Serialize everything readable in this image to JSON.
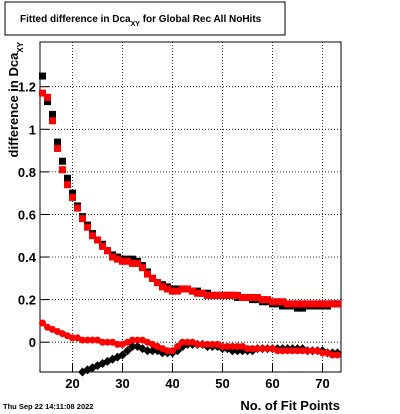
{
  "chart_data": {
    "type": "scatter",
    "title": {
      "main": "Fitted difference in Dca",
      "sub": "XY",
      "rest": " for Global Rec All NoHits"
    },
    "ylabel": {
      "main": "difference in Dca",
      "sub": "XY"
    },
    "xlabel": "No. of Fit Points",
    "timestamp": "Thu Sep 22 14:11:08 2022",
    "grid": true,
    "xlim": [
      13.5,
      73.7
    ],
    "ylim": [
      -0.14,
      1.41
    ],
    "xticks": [
      20,
      30,
      40,
      50,
      60,
      70
    ],
    "yticks": [
      0,
      0.2,
      0.4,
      0.6,
      0.8,
      1,
      1.2
    ],
    "x": [
      14,
      15,
      16,
      17,
      18,
      19,
      20,
      21,
      22,
      23,
      24,
      25,
      26,
      27,
      28,
      29,
      30,
      31,
      32,
      33,
      34,
      35,
      36,
      37,
      38,
      39,
      40,
      41,
      42,
      43,
      44,
      45,
      46,
      47,
      48,
      49,
      50,
      51,
      52,
      53,
      54,
      55,
      56,
      57,
      58,
      59,
      60,
      61,
      62,
      63,
      64,
      65,
      66,
      67,
      68,
      69,
      70,
      71,
      72,
      73
    ],
    "series": [
      {
        "color": "#000000",
        "marker": "square",
        "values": [
          1.25,
          1.13,
          1.07,
          0.94,
          0.85,
          0.77,
          0.7,
          0.64,
          0.59,
          0.55,
          0.51,
          0.48,
          0.46,
          0.43,
          0.41,
          0.4,
          0.39,
          0.39,
          0.39,
          0.38,
          0.36,
          0.33,
          0.3,
          0.28,
          0.27,
          0.26,
          0.25,
          0.25,
          0.25,
          0.25,
          0.24,
          0.24,
          0.23,
          0.23,
          0.22,
          0.22,
          0.22,
          0.22,
          0.22,
          0.21,
          0.21,
          0.21,
          0.2,
          0.2,
          0.19,
          0.19,
          0.18,
          0.18,
          0.17,
          0.17,
          0.17,
          0.16,
          0.16,
          0.17,
          0.17,
          0.17,
          0.17,
          0.17,
          0.18,
          0.18
        ]
      },
      {
        "color": "#ff0000",
        "marker": "square",
        "values": [
          1.17,
          1.15,
          1.04,
          0.91,
          0.81,
          0.74,
          0.68,
          0.63,
          0.58,
          0.54,
          0.5,
          0.48,
          0.45,
          0.43,
          0.4,
          0.39,
          0.38,
          0.38,
          0.37,
          0.37,
          0.35,
          0.32,
          0.3,
          0.28,
          0.26,
          0.25,
          0.24,
          0.24,
          0.25,
          0.25,
          0.24,
          0.23,
          0.23,
          0.22,
          0.22,
          0.22,
          0.22,
          0.22,
          0.22,
          0.22,
          0.21,
          0.21,
          0.21,
          0.21,
          0.2,
          0.2,
          0.19,
          0.19,
          0.19,
          0.18,
          0.18,
          0.18,
          0.18,
          0.18,
          0.18,
          0.18,
          0.18,
          0.18,
          0.18,
          0.18
        ]
      },
      {
        "color": "#000000",
        "marker": "diamond",
        "values": [
          null,
          null,
          null,
          null,
          null,
          null,
          null,
          null,
          -0.14,
          -0.13,
          -0.12,
          -0.11,
          -0.1,
          -0.09,
          -0.08,
          -0.07,
          -0.06,
          -0.04,
          -0.02,
          -0.02,
          -0.03,
          -0.04,
          -0.04,
          -0.04,
          -0.05,
          -0.05,
          -0.05,
          -0.04,
          -0.02,
          -0.01,
          -0.01,
          -0.01,
          -0.01,
          -0.02,
          -0.02,
          -0.02,
          -0.03,
          -0.03,
          -0.04,
          -0.04,
          -0.04,
          -0.04,
          -0.04,
          -0.03,
          -0.03,
          -0.03,
          -0.03,
          -0.03,
          -0.03,
          -0.03,
          -0.03,
          -0.03,
          -0.03,
          -0.04,
          -0.04,
          -0.04,
          -0.04,
          -0.05,
          -0.05,
          -0.05
        ]
      },
      {
        "color": "#ff0000",
        "marker": "circle",
        "values": [
          0.09,
          0.07,
          0.06,
          0.05,
          0.04,
          0.03,
          0.02,
          0.02,
          0.01,
          0.01,
          0.01,
          0.01,
          0.0,
          0.0,
          0.0,
          -0.01,
          -0.01,
          0.0,
          0.01,
          0.01,
          0.01,
          0.0,
          -0.01,
          -0.02,
          -0.03,
          -0.04,
          -0.04,
          -0.02,
          0.0,
          0.0,
          0.0,
          -0.01,
          -0.01,
          -0.01,
          -0.01,
          -0.01,
          -0.02,
          -0.02,
          -0.02,
          -0.02,
          -0.02,
          -0.03,
          -0.03,
          -0.03,
          -0.03,
          -0.03,
          -0.03,
          -0.04,
          -0.04,
          -0.04,
          -0.04,
          -0.04,
          -0.04,
          -0.04,
          -0.04,
          -0.04,
          -0.05,
          -0.05,
          -0.06,
          -0.06
        ]
      }
    ]
  }
}
